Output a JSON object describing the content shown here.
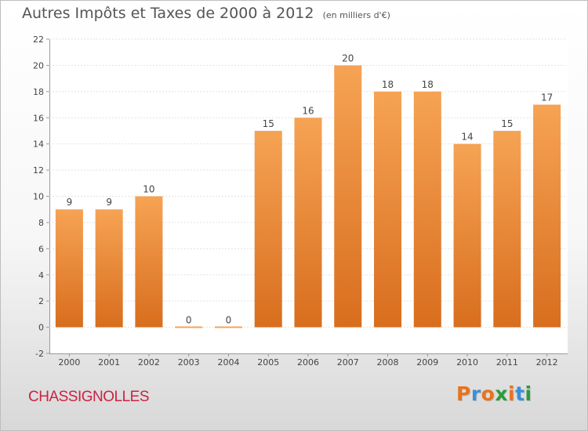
{
  "title": "Autres Impôts et Taxes de 2000 à 2012",
  "subtitle": "(en milliers d'€)",
  "commune": "CHASSIGNOLLES",
  "logo": {
    "letters": [
      "P",
      "r",
      "o",
      "x",
      "i",
      "t",
      "i"
    ],
    "colors": [
      "#e8731c",
      "#3a8fd6",
      "#e8731c",
      "#2a9c3a",
      "#e8731c",
      "#3a8fd6",
      "#2a9c3a"
    ]
  },
  "colors": {
    "bar_top": "#f6a354",
    "bar_bottom": "#d86e1e",
    "text": "#444444",
    "grid": "#e2e2e2"
  },
  "chart_data": {
    "type": "bar",
    "categories": [
      "2000",
      "2001",
      "2002",
      "2003",
      "2004",
      "2005",
      "2006",
      "2007",
      "2008",
      "2009",
      "2010",
      "2011",
      "2012"
    ],
    "values": [
      9,
      9,
      10,
      0,
      0,
      15,
      16,
      20,
      18,
      18,
      14,
      15,
      17
    ],
    "data_labels": [
      "9",
      "9",
      "10",
      "0",
      "0",
      "15",
      "16",
      "20",
      "18",
      "18",
      "14",
      "15",
      "17"
    ],
    "ylim": [
      -2,
      22
    ],
    "yticks": [
      -2,
      0,
      2,
      4,
      6,
      8,
      10,
      12,
      14,
      16,
      18,
      20,
      22
    ],
    "ytick_labels": [
      "-2",
      "0",
      "2",
      "4",
      "6",
      "8",
      "10",
      "12",
      "14",
      "16",
      "18",
      "20",
      "22"
    ],
    "grid": true,
    "legend": "none"
  }
}
